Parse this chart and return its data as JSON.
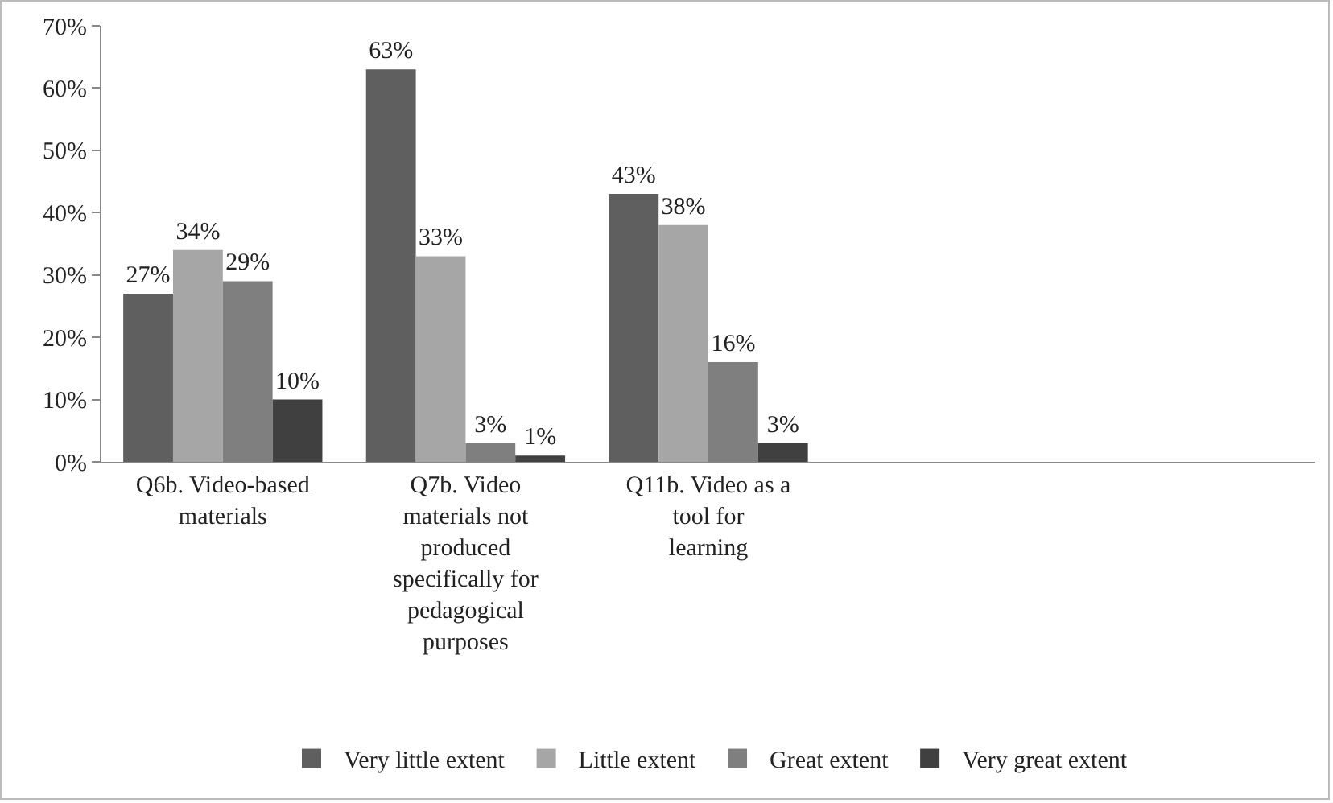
{
  "chart_data": {
    "type": "bar",
    "categories": [
      "Q6b. Video-based materials",
      "Q7b. Video materials not produced specifically for pedagogical purposes",
      "Q11b. Video as a tool for learning",
      null,
      null
    ],
    "series": [
      {
        "name": "Very little extent",
        "color": "#5f5f5f",
        "values": [
          27,
          63,
          43,
          null,
          null
        ],
        "value_labels": [
          "27%",
          "63%",
          "43%",
          null,
          null
        ]
      },
      {
        "name": "Little extent",
        "color": "#a6a6a6",
        "values": [
          34,
          33,
          38,
          null,
          null
        ],
        "value_labels": [
          "34%",
          "33%",
          "38%",
          null,
          null
        ]
      },
      {
        "name": "Great extent",
        "color": "#7f7f7f",
        "values": [
          29,
          3,
          16,
          null,
          null
        ],
        "value_labels": [
          "29%",
          "3%",
          "16%",
          null,
          null
        ]
      },
      {
        "name": "Very great extent",
        "color": "#404040",
        "values": [
          10,
          1,
          3,
          null,
          null
        ],
        "value_labels": [
          "10%",
          "1%",
          "3%",
          null,
          null
        ]
      }
    ],
    "ylim": [
      0,
      70
    ],
    "yticks": [
      {
        "value": 0,
        "label": "0%"
      },
      {
        "value": 10,
        "label": "10%"
      },
      {
        "value": 20,
        "label": "20%"
      },
      {
        "value": 30,
        "label": "30%"
      },
      {
        "value": 40,
        "label": "40%"
      },
      {
        "value": 50,
        "label": "50%"
      },
      {
        "value": 60,
        "label": "60%"
      },
      {
        "value": 70,
        "label": "70%"
      }
    ],
    "legend": "bottom"
  }
}
